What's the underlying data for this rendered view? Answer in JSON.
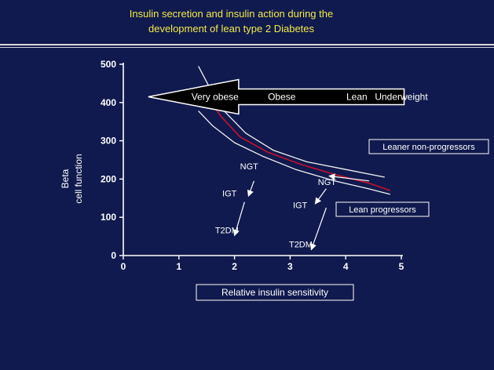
{
  "slide": {
    "title_line1": "Insulin secretion and insulin action during the",
    "title_line2": "development of lean type 2 Diabetes"
  },
  "colors": {
    "background": "#101a4e",
    "title": "#f2e84a",
    "axis": "#ffffff",
    "curve_outer": "#f0f0f0",
    "curve_mid": "#c8102e",
    "arrow_fill": "#000000"
  },
  "chart_data": {
    "type": "line",
    "xlabel": "Relative insulin sensitivity",
    "ylabel_line1": "Beta",
    "ylabel_line2": "cell function",
    "xlim": [
      0,
      5
    ],
    "ylim": [
      0,
      500
    ],
    "x_ticks": [
      "0",
      "1",
      "2",
      "3",
      "4",
      "5"
    ],
    "y_ticks": [
      "0",
      "100",
      "200",
      "300",
      "400",
      "500"
    ],
    "grid": false,
    "series": [
      {
        "name": "",
        "role": "upper",
        "color": "#f0f0f0",
        "points": [
          [
            1.35,
            495
          ],
          [
            1.55,
            440
          ],
          [
            1.8,
            380
          ],
          [
            2.2,
            320
          ],
          [
            2.7,
            275
          ],
          [
            3.3,
            245
          ],
          [
            4.0,
            225
          ],
          [
            4.7,
            205
          ]
        ]
      },
      {
        "name": "",
        "role": "middle",
        "color": "#c8102e",
        "points": [
          [
            1.5,
            415
          ],
          [
            1.75,
            365
          ],
          [
            2.1,
            310
          ],
          [
            2.6,
            270
          ],
          [
            3.2,
            238
          ],
          [
            3.8,
            212
          ],
          [
            4.4,
            190
          ],
          [
            4.8,
            170
          ]
        ]
      },
      {
        "name": "",
        "role": "lower",
        "color": "#f0f0f0",
        "points": [
          [
            1.35,
            378
          ],
          [
            1.6,
            340
          ],
          [
            2.0,
            295
          ],
          [
            2.5,
            260
          ],
          [
            3.1,
            225
          ],
          [
            3.8,
            195
          ],
          [
            4.4,
            175
          ],
          [
            4.8,
            160
          ]
        ]
      }
    ],
    "big_arrow": {
      "tail_x": 5.05,
      "head_x": 0.45,
      "y": 415,
      "labels": [
        "Very obese",
        "Obese",
        "Lean",
        "Underweight"
      ],
      "label_x": [
        1.65,
        2.85,
        4.2,
        5.0
      ]
    },
    "pathways": [
      {
        "labels": [
          {
            "text": "NGT",
            "x": 2.1,
            "y": 225
          },
          {
            "text": "IGT",
            "x": 1.78,
            "y": 155
          },
          {
            "text": "T2DM",
            "x": 1.65,
            "y": 58
          }
        ],
        "arrows": [
          {
            "from": [
              2.35,
              195
            ],
            "to": [
              2.25,
              155
            ]
          },
          {
            "from": [
              2.18,
              140
            ],
            "to": [
              2.0,
              52
            ]
          }
        ]
      },
      {
        "labels": [
          {
            "text": "NGT",
            "x": 3.5,
            "y": 184
          },
          {
            "text": "IGT",
            "x": 3.05,
            "y": 124
          },
          {
            "text": "T2DM",
            "x": 2.98,
            "y": 22
          }
        ],
        "arrows": [
          {
            "from": [
              3.65,
              175
            ],
            "to": [
              3.45,
              135
            ]
          },
          {
            "from": [
              3.65,
              125
            ],
            "to": [
              3.38,
              15
            ]
          }
        ]
      }
    ],
    "callouts": [
      {
        "text": "Leaner non-progressors",
        "ptr_from": [
          4.42,
          195
        ],
        "ptr_to": [
          3.7,
          208
        ]
      },
      {
        "text": "Lean progressors"
      }
    ]
  }
}
